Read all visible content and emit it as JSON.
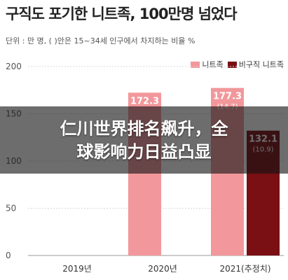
{
  "header": {
    "title": "구직도 포기한 니트족, 100만명 넘었다",
    "unit_note": "단위 : 만 명, ( )안은 15~34세 인구에서 차지하는 비율 %"
  },
  "colors": {
    "neet": "#f2979b",
    "nonseeker": "#7a0f14",
    "grid": "#d8d8d8",
    "axis_text": "#555555"
  },
  "legend": {
    "items": [
      {
        "label": "니트족",
        "color_key": "neet"
      },
      {
        "label": "비구직 니트족",
        "color_key": "nonseeker"
      }
    ]
  },
  "chart_data": {
    "type": "bar",
    "categories": [
      "2019년",
      "2020년",
      "2021(추정치)"
    ],
    "series": [
      {
        "name": "니트족",
        "values": [
          null,
          172.3,
          177.3
        ],
        "labels": [
          "",
          "172.3",
          "177.3"
        ],
        "shares": [
          "",
          "",
          "(14.7)"
        ]
      },
      {
        "name": "비구직 니트족",
        "values": [
          null,
          null,
          132.1
        ],
        "labels": [
          "",
          "",
          "132.1"
        ],
        "shares": [
          "",
          "",
          "(10.9)"
        ]
      }
    ],
    "title": "구직도 포기한 니트족, 100만명 넘었다",
    "y_ticks": [
      0,
      50,
      100,
      150,
      200
    ],
    "ylim": [
      0,
      200
    ],
    "grid": true,
    "legend_position": "top-right"
  },
  "overlay": {
    "line1": "仁川世界排名飙升，全",
    "line2": "球影响力日益凸显"
  }
}
